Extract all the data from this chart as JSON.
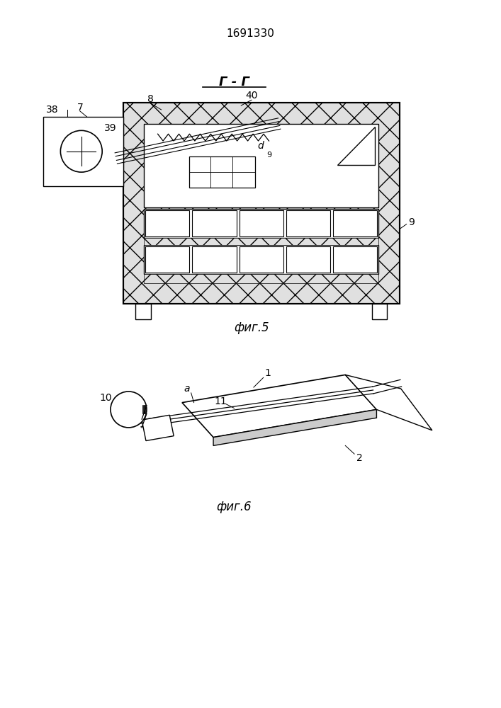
{
  "patent_number": "1691330",
  "fig5_label": "фиг.5",
  "fig6_label": "фиг.6",
  "section_label": "Г - Г",
  "bg_color": "#ffffff",
  "line_color": "#000000"
}
